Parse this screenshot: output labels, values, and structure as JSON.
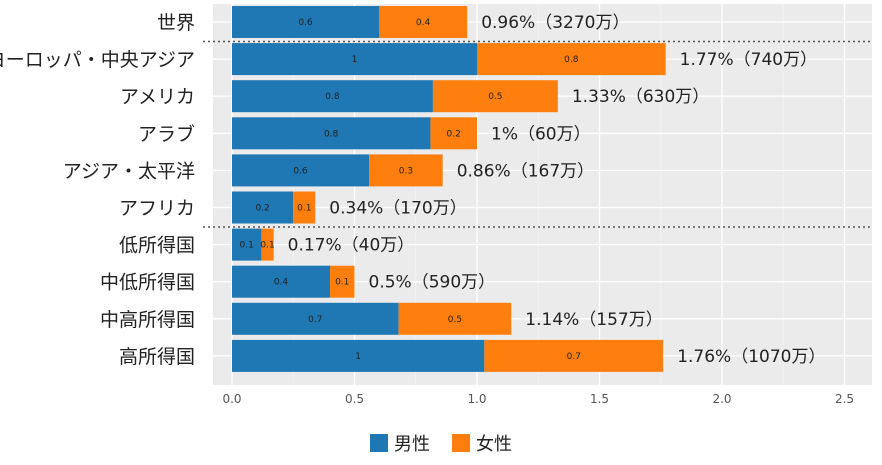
{
  "chart_data": {
    "type": "bar",
    "orientation": "horizontal",
    "stacked": true,
    "categories": [
      "世界",
      "ヨーロッパ・中央アジア",
      "アメリカ",
      "アラブ",
      "アジア・太平洋",
      "アフリカ",
      "低所得国",
      "中低所得国",
      "中高所得国",
      "高所得国"
    ],
    "series": [
      {
        "name": "男性",
        "color": "#1f77b4",
        "values": [
          0.6,
          1.0,
          0.82,
          0.81,
          0.56,
          0.25,
          0.12,
          0.4,
          0.68,
          1.03
        ],
        "labels": [
          "0.6",
          "1",
          "0.8",
          "0.8",
          "0.6",
          "0.2",
          "0.1",
          "0.4",
          "0.7",
          "1"
        ]
      },
      {
        "name": "女性",
        "color": "#ff7f0e",
        "values": [
          0.36,
          0.77,
          0.51,
          0.19,
          0.3,
          0.09,
          0.05,
          0.1,
          0.46,
          0.73
        ],
        "labels": [
          "0.4",
          "0.8",
          "0.5",
          "0.2",
          "0.3",
          "0.1",
          "0.1",
          "0.1",
          "0.5",
          "0.7"
        ]
      }
    ],
    "annotations": [
      "0.96%（3270万）",
      "1.77%（740万）",
      "1.33%（630万）",
      "1%（60万）",
      "0.86%（167万）",
      "0.34%（170万）",
      "0.17%（40万）",
      "0.5%（590万）",
      "1.14%（157万）",
      "1.76%（1070万）"
    ],
    "xlim": [
      0,
      2.5
    ],
    "xticks": [
      "0.0",
      "0.5",
      "1.0",
      "1.5",
      "2.0",
      "2.5"
    ],
    "grid": true,
    "separators_after": [
      "世界",
      "アフリカ"
    ],
    "legend_position": "bottom",
    "title": "",
    "xlabel": "",
    "ylabel": ""
  }
}
